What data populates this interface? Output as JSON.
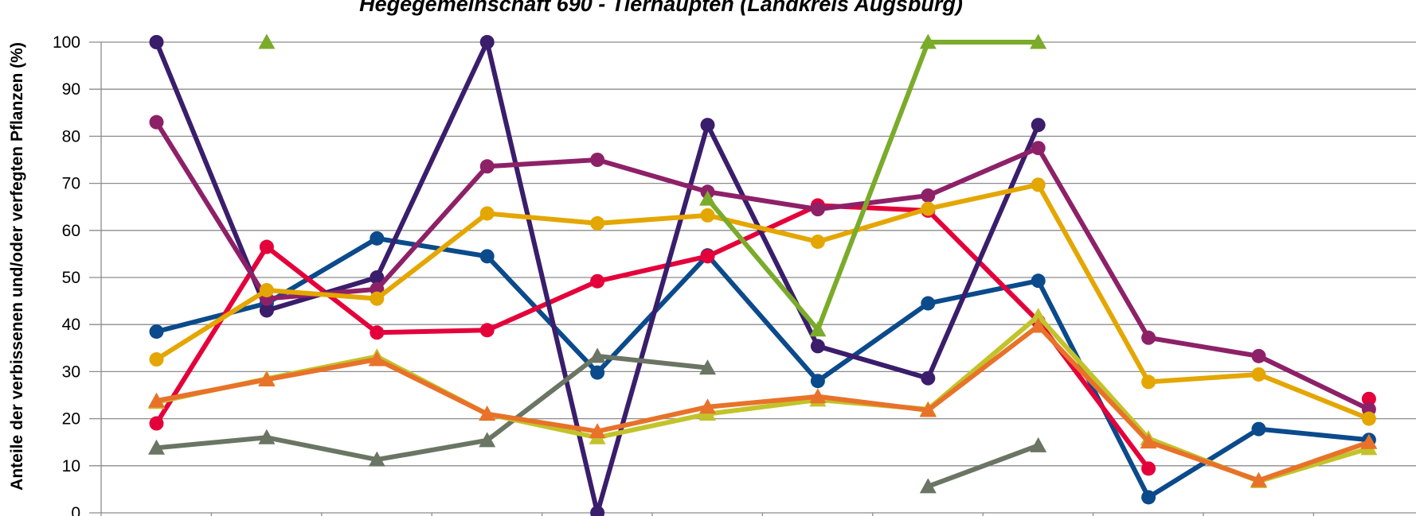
{
  "chart_data": {
    "type": "line",
    "title": "Hegegemeinschaft 690 - Tierhaupten (Landkreis Augsburg)",
    "ylabel": "Anteile der verbissenen und/oder verfegten Pflanzen (%)",
    "ylim": [
      0,
      100
    ],
    "yticks": [
      0,
      10,
      20,
      30,
      40,
      50,
      60,
      70,
      80,
      90,
      100
    ],
    "n_categories": 12,
    "grid": true,
    "series": [
      {
        "color": "#0b4a8b",
        "marker": "circle",
        "values": [
          38.5,
          44.5,
          58.3,
          54.5,
          29.8,
          54.7,
          28.0,
          44.5,
          49.3,
          3.3,
          17.8,
          15.5
        ]
      },
      {
        "color": "#e4003a",
        "marker": "circle",
        "values": [
          19.0,
          56.5,
          38.3,
          38.8,
          49.2,
          54.5,
          65.3,
          64.2,
          40.7,
          9.4,
          null,
          24.2
        ]
      },
      {
        "color": "#3a1d6b",
        "marker": "circle",
        "values": [
          100,
          43.0,
          50.0,
          100,
          0.0,
          82.4,
          35.4,
          28.6,
          82.4,
          null,
          null,
          null
        ]
      },
      {
        "color": "#8d2168",
        "marker": "circle",
        "values": [
          83.0,
          45.5,
          47.5,
          73.6,
          75.0,
          68.2,
          64.5,
          67.4,
          77.5,
          37.2,
          33.3,
          22.0
        ]
      },
      {
        "color": "#e4a600",
        "marker": "circle",
        "values": [
          32.6,
          47.3,
          45.5,
          63.6,
          61.5,
          63.2,
          57.6,
          64.6,
          69.7,
          27.8,
          29.4,
          20.0
        ]
      },
      {
        "color": "#7aab2a",
        "marker": "triangle",
        "values": [
          null,
          100,
          null,
          null,
          null,
          66.7,
          38.9,
          100,
          100,
          null,
          null,
          null
        ]
      },
      {
        "color": "#6a7563",
        "marker": "triangle",
        "values": [
          13.8,
          16.0,
          11.3,
          15.4,
          33.3,
          30.8,
          null,
          5.6,
          14.3,
          null,
          null,
          null
        ]
      },
      {
        "color": "#c2c32a",
        "marker": "triangle",
        "values": [
          23.5,
          28.5,
          33.2,
          21.0,
          16.0,
          21.0,
          24.0,
          22.0,
          41.8,
          15.8,
          6.7,
          13.7
        ]
      },
      {
        "color": "#e8722a",
        "marker": "triangle",
        "values": [
          23.8,
          28.3,
          32.6,
          21.0,
          17.3,
          22.5,
          24.7,
          21.8,
          39.7,
          15.1,
          6.9,
          15.0
        ]
      }
    ]
  }
}
